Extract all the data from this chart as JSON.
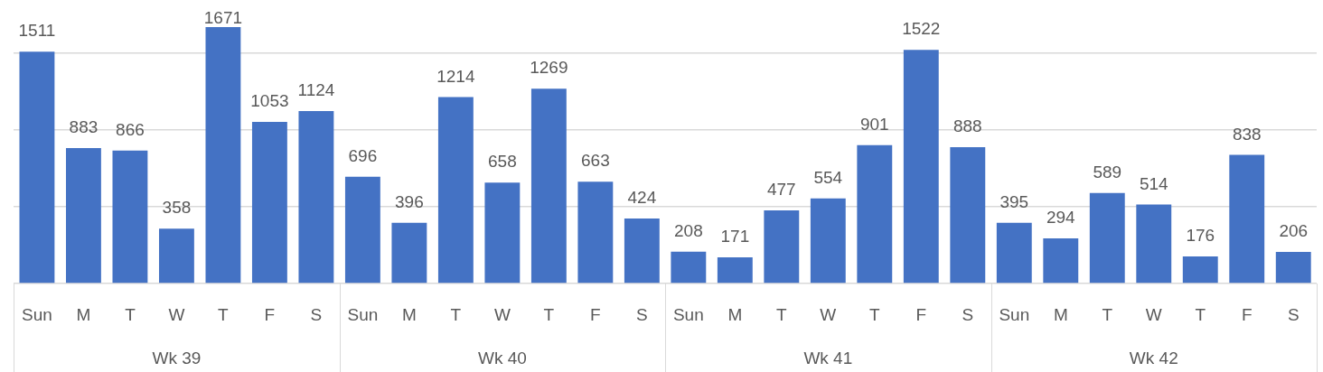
{
  "chart_data": {
    "type": "bar",
    "categories": [
      "Sun",
      "M",
      "T",
      "W",
      "T",
      "F",
      "S",
      "Sun",
      "M",
      "T",
      "W",
      "T",
      "F",
      "S",
      "Sun",
      "M",
      "T",
      "W",
      "T",
      "F",
      "S",
      "Sun",
      "M",
      "T",
      "W",
      "T",
      "F",
      "S"
    ],
    "values": [
      1511,
      883,
      866,
      358,
      1671,
      1053,
      1124,
      696,
      396,
      1214,
      658,
      1269,
      663,
      424,
      208,
      171,
      477,
      554,
      901,
      1522,
      888,
      395,
      294,
      589,
      514,
      176,
      838,
      206
    ],
    "color": "#4472c4",
    "yticks": [
      {
        "value": 0,
        "label": null
      },
      {
        "value": 500,
        "label": null
      },
      {
        "value": 1000,
        "label": null
      },
      {
        "value": 1500,
        "label": null
      }
    ],
    "grid": "y",
    "tick_labels": "x",
    "data_labels": true,
    "annotations": [
      "Wk 39",
      "Wk 40",
      "Wk 41",
      "Wk 42"
    ]
  }
}
